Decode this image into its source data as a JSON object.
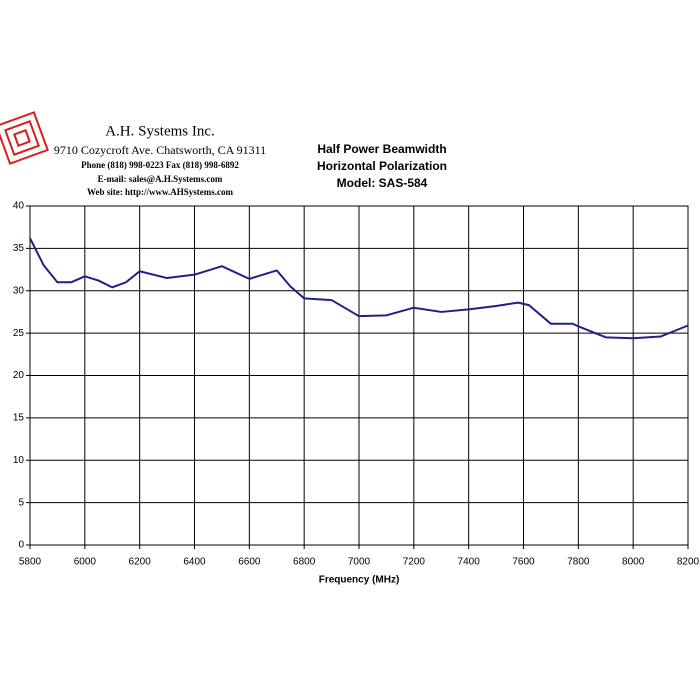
{
  "chart_data": {
    "type": "line",
    "title": "Half Power Beamwidth",
    "subtitle": [
      "Horizontal Polarization",
      "Model: SAS-584"
    ],
    "annotations": [
      "A.H. Systems Inc.",
      "9710 Cozycroft Ave. Chatsworth, CA 91311",
      "Phone (818) 998-0223 Fax (818) 998-6892",
      "E-mail:  sales@A.H.Systems.com",
      "Web site:  http://www.AHSystems.com"
    ],
    "x_label": "Frequency (MHz)",
    "x": [
      5800,
      5850,
      5900,
      5950,
      6000,
      6050,
      6100,
      6150,
      6200,
      6300,
      6400,
      6500,
      6600,
      6700,
      6750,
      6800,
      6900,
      7000,
      7100,
      7200,
      7300,
      7400,
      7500,
      7580,
      7620,
      7700,
      7780,
      7800,
      7900,
      8000,
      8100,
      8200
    ],
    "series": [
      {
        "color": "#1c2385",
        "values": [
          36.2,
          33,
          31,
          31,
          31.7,
          31.2,
          30.4,
          31,
          32.3,
          31.5,
          31.9,
          32.9,
          31.4,
          32.4,
          30.5,
          29.1,
          28.9,
          27,
          27.1,
          28,
          27.5,
          27.8,
          28.2,
          28.6,
          28.3,
          26.1,
          26.1,
          25.8,
          24.5,
          24.4,
          24.6,
          25.9
        ]
      }
    ],
    "xlim": [
      5800,
      8200
    ],
    "xticks": [
      5800,
      6000,
      6200,
      6400,
      6600,
      6800,
      7000,
      7200,
      7400,
      7600,
      7800,
      8000,
      8200
    ],
    "ylim": [
      0,
      40
    ],
    "yticks": [
      0,
      5,
      10,
      15,
      20,
      25,
      30,
      35,
      40
    ],
    "grid": true
  }
}
